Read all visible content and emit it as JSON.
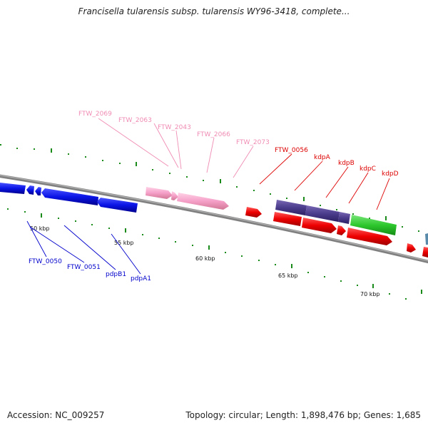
{
  "title": "Francisella tularensis subsp. tularensis WY96-3418, complete...",
  "accession": "Accession: NC_009257",
  "topology": "Topology: circular; Length: 1,898,476 bp; Genes: 1,685",
  "scale_labels": [
    "50 kbp",
    "55 kbp",
    "60 kbp",
    "65 kbp",
    "70 kbp"
  ],
  "gene_labels": {
    "top": [
      {
        "text": "FTW_2069",
        "color": "#f08cb4"
      },
      {
        "text": "FTW_2063",
        "color": "#f08cb4"
      },
      {
        "text": "FTW_2043",
        "color": "#f08cb4"
      },
      {
        "text": "FTW_2066",
        "color": "#f08cb4"
      },
      {
        "text": "FTW_2073",
        "color": "#f08cb4"
      },
      {
        "text": "FTW_0056",
        "color": "#dd0000"
      },
      {
        "text": "kdpA",
        "color": "#dd0000"
      },
      {
        "text": "kdpB",
        "color": "#dd0000"
      },
      {
        "text": "kdpC",
        "color": "#dd0000"
      },
      {
        "text": "kdpD",
        "color": "#dd0000"
      }
    ],
    "bottom": [
      {
        "text": "FTW_0050",
        "color": "#0000cc"
      },
      {
        "text": "FTW_0051",
        "color": "#0000cc"
      },
      {
        "text": "pdpB1",
        "color": "#0000cc"
      },
      {
        "text": "pdpA1",
        "color": "#0000cc"
      }
    ]
  },
  "colors": {
    "blue_genes": "#0a14e6",
    "pink_genes": "#f5a0c8",
    "red_genes": "#ee0000",
    "purple_genes": "#4b3c8c",
    "green_genes": "#2ec82e",
    "backbone": "#808080",
    "ticks": "#1a8a1a"
  }
}
